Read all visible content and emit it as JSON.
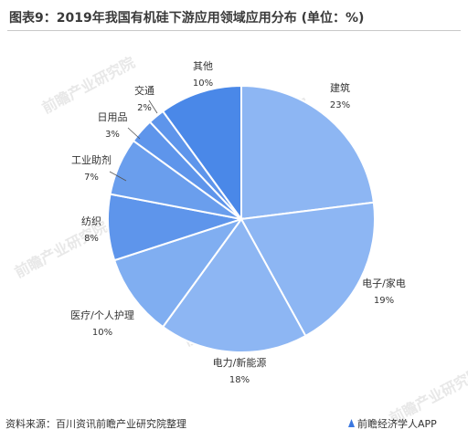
{
  "title": "图表9：2019年我国有机硅下游应用领域应用分布 (单位：%)",
  "source": "资料来源：百川资讯前瞻产业研究院整理",
  "brand": "前瞻经济学人APP",
  "watermark": "前瞻产业研究院",
  "colors": {
    "slice_light": "#8db6f3",
    "slice_mid": "#77a7ef",
    "slice_dark": "#4d8ae8",
    "slice_darker": "#3f7fe3",
    "leader_line": "#555555"
  },
  "chart_data": {
    "type": "pie",
    "title": "图表9：2019年我国有机硅下游应用领域应用分布 (单位：%)",
    "unit": "%",
    "start_angle_deg": 0,
    "direction": "clockwise",
    "slices": [
      {
        "name": "建筑",
        "value": 23,
        "label": "23%",
        "color": "#8db6f3"
      },
      {
        "name": "电子/家电",
        "value": 19,
        "label": "19%",
        "color": "#8db6f3"
      },
      {
        "name": "电力/新能源",
        "value": 18,
        "label": "18%",
        "color": "#8db6f3"
      },
      {
        "name": "医疗/个人护理",
        "value": 10,
        "label": "10%",
        "color": "#80aef1"
      },
      {
        "name": "纺织",
        "value": 8,
        "label": "8%",
        "color": "#5e95eb"
      },
      {
        "name": "工业助剂",
        "value": 7,
        "label": "7%",
        "color": "#6a9eed"
      },
      {
        "name": "日用品",
        "value": 3,
        "label": "3%",
        "color": "#5e95eb"
      },
      {
        "name": "交通",
        "value": 2,
        "label": "2%",
        "color": "#5e95eb"
      },
      {
        "name": "其他",
        "value": 10,
        "label": "10%",
        "color": "#4a88e8"
      }
    ]
  }
}
